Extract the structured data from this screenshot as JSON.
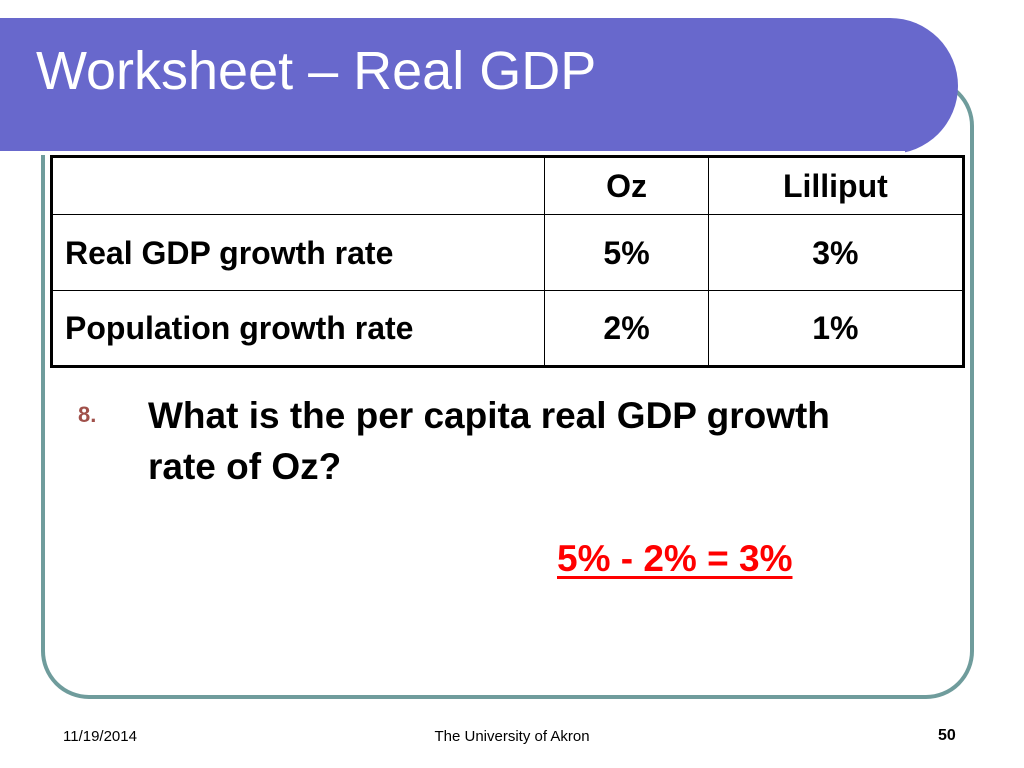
{
  "slide": {
    "title": "Worksheet – Real GDP",
    "colors": {
      "title_bar": "#6868cc",
      "frame_border": "#6f9c9c",
      "answer": "#ff0000",
      "question_number": "#a0504a"
    }
  },
  "table": {
    "header": [
      "",
      "Oz",
      "Lilliput"
    ],
    "rows": [
      [
        "Real GDP growth rate",
        "5%",
        "3%"
      ],
      [
        "Population growth rate",
        "2%",
        "1%"
      ]
    ]
  },
  "question": {
    "number": "8.",
    "text": "What is the per capita real GDP growth rate of Oz?"
  },
  "answer": "5% - 2% = 3%",
  "footer": {
    "date": "11/19/2014",
    "organization": "The University of Akron",
    "page": "50"
  }
}
